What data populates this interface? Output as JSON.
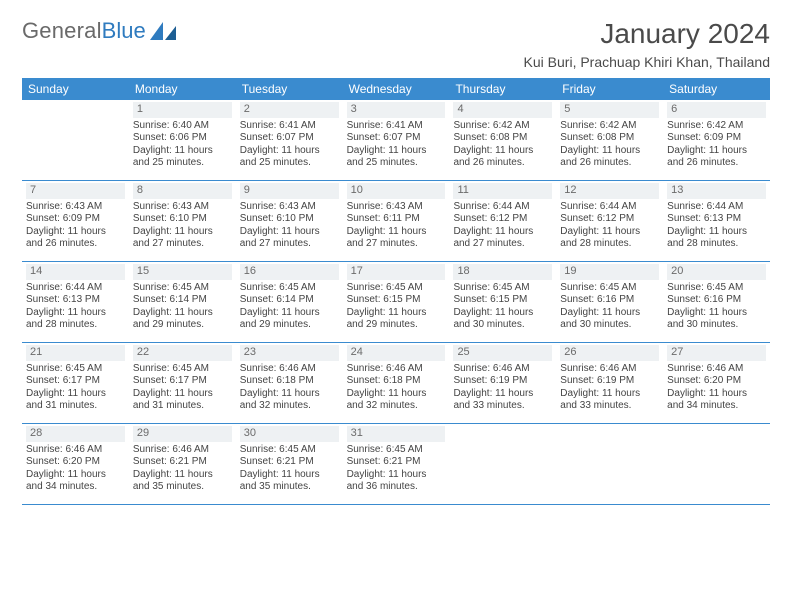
{
  "logo": {
    "text1": "General",
    "text2": "Blue"
  },
  "title": "January 2024",
  "location": "Kui Buri, Prachuap Khiri Khan, Thailand",
  "colors": {
    "header_bg": "#3a8bcf",
    "header_text": "#ffffff",
    "week_border": "#3a8bcf",
    "daynum_bg": "#eef1f3",
    "daynum_text": "#6b6b6b",
    "body_text": "#444444",
    "title_text": "#4a4a4a",
    "logo_gray": "#6a6a6a",
    "logo_blue": "#2f7bbf"
  },
  "weekdays": [
    "Sunday",
    "Monday",
    "Tuesday",
    "Wednesday",
    "Thursday",
    "Friday",
    "Saturday"
  ],
  "weeks": [
    [
      {
        "day": "",
        "sunrise": "",
        "sunset": "",
        "daylight1": "",
        "daylight2": ""
      },
      {
        "day": "1",
        "sunrise": "Sunrise: 6:40 AM",
        "sunset": "Sunset: 6:06 PM",
        "daylight1": "Daylight: 11 hours",
        "daylight2": "and 25 minutes."
      },
      {
        "day": "2",
        "sunrise": "Sunrise: 6:41 AM",
        "sunset": "Sunset: 6:07 PM",
        "daylight1": "Daylight: 11 hours",
        "daylight2": "and 25 minutes."
      },
      {
        "day": "3",
        "sunrise": "Sunrise: 6:41 AM",
        "sunset": "Sunset: 6:07 PM",
        "daylight1": "Daylight: 11 hours",
        "daylight2": "and 25 minutes."
      },
      {
        "day": "4",
        "sunrise": "Sunrise: 6:42 AM",
        "sunset": "Sunset: 6:08 PM",
        "daylight1": "Daylight: 11 hours",
        "daylight2": "and 26 minutes."
      },
      {
        "day": "5",
        "sunrise": "Sunrise: 6:42 AM",
        "sunset": "Sunset: 6:08 PM",
        "daylight1": "Daylight: 11 hours",
        "daylight2": "and 26 minutes."
      },
      {
        "day": "6",
        "sunrise": "Sunrise: 6:42 AM",
        "sunset": "Sunset: 6:09 PM",
        "daylight1": "Daylight: 11 hours",
        "daylight2": "and 26 minutes."
      }
    ],
    [
      {
        "day": "7",
        "sunrise": "Sunrise: 6:43 AM",
        "sunset": "Sunset: 6:09 PM",
        "daylight1": "Daylight: 11 hours",
        "daylight2": "and 26 minutes."
      },
      {
        "day": "8",
        "sunrise": "Sunrise: 6:43 AM",
        "sunset": "Sunset: 6:10 PM",
        "daylight1": "Daylight: 11 hours",
        "daylight2": "and 27 minutes."
      },
      {
        "day": "9",
        "sunrise": "Sunrise: 6:43 AM",
        "sunset": "Sunset: 6:10 PM",
        "daylight1": "Daylight: 11 hours",
        "daylight2": "and 27 minutes."
      },
      {
        "day": "10",
        "sunrise": "Sunrise: 6:43 AM",
        "sunset": "Sunset: 6:11 PM",
        "daylight1": "Daylight: 11 hours",
        "daylight2": "and 27 minutes."
      },
      {
        "day": "11",
        "sunrise": "Sunrise: 6:44 AM",
        "sunset": "Sunset: 6:12 PM",
        "daylight1": "Daylight: 11 hours",
        "daylight2": "and 27 minutes."
      },
      {
        "day": "12",
        "sunrise": "Sunrise: 6:44 AM",
        "sunset": "Sunset: 6:12 PM",
        "daylight1": "Daylight: 11 hours",
        "daylight2": "and 28 minutes."
      },
      {
        "day": "13",
        "sunrise": "Sunrise: 6:44 AM",
        "sunset": "Sunset: 6:13 PM",
        "daylight1": "Daylight: 11 hours",
        "daylight2": "and 28 minutes."
      }
    ],
    [
      {
        "day": "14",
        "sunrise": "Sunrise: 6:44 AM",
        "sunset": "Sunset: 6:13 PM",
        "daylight1": "Daylight: 11 hours",
        "daylight2": "and 28 minutes."
      },
      {
        "day": "15",
        "sunrise": "Sunrise: 6:45 AM",
        "sunset": "Sunset: 6:14 PM",
        "daylight1": "Daylight: 11 hours",
        "daylight2": "and 29 minutes."
      },
      {
        "day": "16",
        "sunrise": "Sunrise: 6:45 AM",
        "sunset": "Sunset: 6:14 PM",
        "daylight1": "Daylight: 11 hours",
        "daylight2": "and 29 minutes."
      },
      {
        "day": "17",
        "sunrise": "Sunrise: 6:45 AM",
        "sunset": "Sunset: 6:15 PM",
        "daylight1": "Daylight: 11 hours",
        "daylight2": "and 29 minutes."
      },
      {
        "day": "18",
        "sunrise": "Sunrise: 6:45 AM",
        "sunset": "Sunset: 6:15 PM",
        "daylight1": "Daylight: 11 hours",
        "daylight2": "and 30 minutes."
      },
      {
        "day": "19",
        "sunrise": "Sunrise: 6:45 AM",
        "sunset": "Sunset: 6:16 PM",
        "daylight1": "Daylight: 11 hours",
        "daylight2": "and 30 minutes."
      },
      {
        "day": "20",
        "sunrise": "Sunrise: 6:45 AM",
        "sunset": "Sunset: 6:16 PM",
        "daylight1": "Daylight: 11 hours",
        "daylight2": "and 30 minutes."
      }
    ],
    [
      {
        "day": "21",
        "sunrise": "Sunrise: 6:45 AM",
        "sunset": "Sunset: 6:17 PM",
        "daylight1": "Daylight: 11 hours",
        "daylight2": "and 31 minutes."
      },
      {
        "day": "22",
        "sunrise": "Sunrise: 6:45 AM",
        "sunset": "Sunset: 6:17 PM",
        "daylight1": "Daylight: 11 hours",
        "daylight2": "and 31 minutes."
      },
      {
        "day": "23",
        "sunrise": "Sunrise: 6:46 AM",
        "sunset": "Sunset: 6:18 PM",
        "daylight1": "Daylight: 11 hours",
        "daylight2": "and 32 minutes."
      },
      {
        "day": "24",
        "sunrise": "Sunrise: 6:46 AM",
        "sunset": "Sunset: 6:18 PM",
        "daylight1": "Daylight: 11 hours",
        "daylight2": "and 32 minutes."
      },
      {
        "day": "25",
        "sunrise": "Sunrise: 6:46 AM",
        "sunset": "Sunset: 6:19 PM",
        "daylight1": "Daylight: 11 hours",
        "daylight2": "and 33 minutes."
      },
      {
        "day": "26",
        "sunrise": "Sunrise: 6:46 AM",
        "sunset": "Sunset: 6:19 PM",
        "daylight1": "Daylight: 11 hours",
        "daylight2": "and 33 minutes."
      },
      {
        "day": "27",
        "sunrise": "Sunrise: 6:46 AM",
        "sunset": "Sunset: 6:20 PM",
        "daylight1": "Daylight: 11 hours",
        "daylight2": "and 34 minutes."
      }
    ],
    [
      {
        "day": "28",
        "sunrise": "Sunrise: 6:46 AM",
        "sunset": "Sunset: 6:20 PM",
        "daylight1": "Daylight: 11 hours",
        "daylight2": "and 34 minutes."
      },
      {
        "day": "29",
        "sunrise": "Sunrise: 6:46 AM",
        "sunset": "Sunset: 6:21 PM",
        "daylight1": "Daylight: 11 hours",
        "daylight2": "and 35 minutes."
      },
      {
        "day": "30",
        "sunrise": "Sunrise: 6:45 AM",
        "sunset": "Sunset: 6:21 PM",
        "daylight1": "Daylight: 11 hours",
        "daylight2": "and 35 minutes."
      },
      {
        "day": "31",
        "sunrise": "Sunrise: 6:45 AM",
        "sunset": "Sunset: 6:21 PM",
        "daylight1": "Daylight: 11 hours",
        "daylight2": "and 36 minutes."
      },
      {
        "day": "",
        "sunrise": "",
        "sunset": "",
        "daylight1": "",
        "daylight2": ""
      },
      {
        "day": "",
        "sunrise": "",
        "sunset": "",
        "daylight1": "",
        "daylight2": ""
      },
      {
        "day": "",
        "sunrise": "",
        "sunset": "",
        "daylight1": "",
        "daylight2": ""
      }
    ]
  ]
}
